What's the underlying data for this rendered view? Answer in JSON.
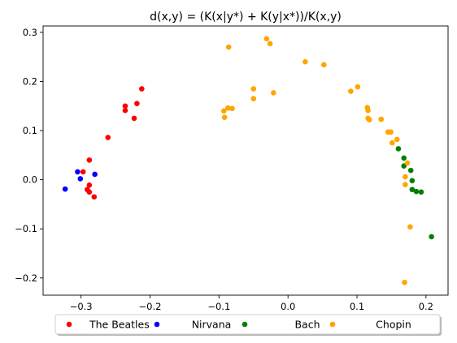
{
  "chart_data": {
    "type": "scatter",
    "title": "d(x,y) = (K(x|y*) + K(y|x*))/K(x,y)",
    "xlabel": "",
    "ylabel": "",
    "xlim": [
      -0.355,
      0.232
    ],
    "ylim": [
      -0.235,
      0.313
    ],
    "x_ticks": [
      -0.3,
      -0.2,
      -0.1,
      0.0,
      0.1,
      0.2
    ],
    "x_tick_labels": [
      "−0.3",
      "−0.2",
      "−0.1",
      "0.0",
      "0.1",
      "0.2"
    ],
    "y_ticks": [
      -0.2,
      -0.1,
      0.0,
      0.1,
      0.2,
      0.3
    ],
    "y_tick_labels": [
      "−0.2",
      "−0.1",
      "0.0",
      "0.1",
      "0.2",
      "0.3"
    ],
    "grid": false,
    "legend_position": "bottom-center",
    "series": [
      {
        "name": "The Beatles",
        "color": "#ff0000",
        "points": [
          [
            -0.212,
            0.185
          ],
          [
            -0.219,
            0.155
          ],
          [
            -0.236,
            0.15
          ],
          [
            -0.236,
            0.141
          ],
          [
            -0.223,
            0.125
          ],
          [
            -0.261,
            0.086
          ],
          [
            -0.288,
            0.04
          ],
          [
            -0.297,
            0.016
          ],
          [
            -0.288,
            -0.011
          ],
          [
            -0.291,
            -0.02
          ],
          [
            -0.288,
            -0.025
          ],
          [
            -0.281,
            -0.035
          ]
        ]
      },
      {
        "name": "Nirvana",
        "color": "#0000ff",
        "points": [
          [
            -0.305,
            0.016
          ],
          [
            -0.28,
            0.011
          ],
          [
            -0.301,
            0.002
          ],
          [
            -0.323,
            -0.019
          ]
        ]
      },
      {
        "name": "Bach",
        "color": "#008000",
        "points": [
          [
            0.16,
            0.063
          ],
          [
            0.168,
            0.044
          ],
          [
            0.168,
            0.028
          ],
          [
            0.178,
            0.019
          ],
          [
            0.18,
            -0.002
          ],
          [
            0.18,
            -0.02
          ],
          [
            0.186,
            -0.024
          ],
          [
            0.193,
            -0.025
          ],
          [
            0.208,
            -0.116
          ]
        ]
      },
      {
        "name": "Chopin",
        "color": "#ffa500",
        "points": [
          [
            -0.031,
            0.287
          ],
          [
            -0.026,
            0.277
          ],
          [
            -0.086,
            0.27
          ],
          [
            0.025,
            0.24
          ],
          [
            0.052,
            0.234
          ],
          [
            0.101,
            0.189
          ],
          [
            -0.05,
            0.185
          ],
          [
            -0.021,
            0.177
          ],
          [
            0.091,
            0.18
          ],
          [
            -0.05,
            0.165
          ],
          [
            -0.087,
            0.146
          ],
          [
            -0.081,
            0.145
          ],
          [
            -0.093,
            0.14
          ],
          [
            0.115,
            0.147
          ],
          [
            0.116,
            0.141
          ],
          [
            0.116,
            0.125
          ],
          [
            0.118,
            0.122
          ],
          [
            -0.092,
            0.127
          ],
          [
            0.135,
            0.123
          ],
          [
            0.145,
            0.097
          ],
          [
            0.149,
            0.097
          ],
          [
            0.158,
            0.082
          ],
          [
            0.151,
            0.075
          ],
          [
            0.173,
            0.034
          ],
          [
            0.17,
            0.006
          ],
          [
            0.17,
            -0.01
          ],
          [
            0.177,
            -0.096
          ],
          [
            0.169,
            -0.209
          ]
        ]
      }
    ]
  }
}
